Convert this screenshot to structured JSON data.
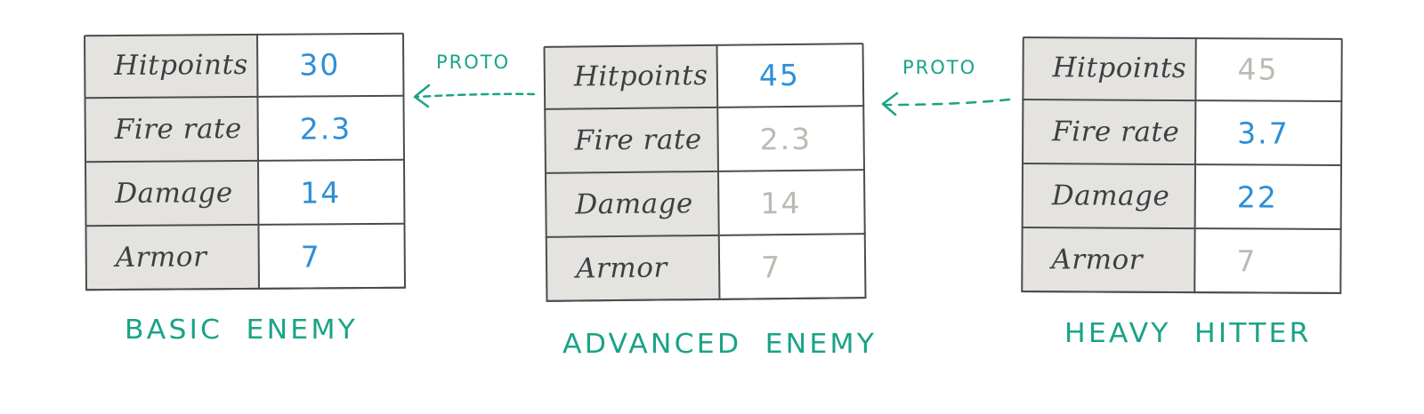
{
  "tables": [
    {
      "caption": "BASIC  ENEMY",
      "rows": [
        {
          "stat": "Hitpoints",
          "value": "30",
          "inherited": false
        },
        {
          "stat": "Fire rate",
          "value": "2.3",
          "inherited": false
        },
        {
          "stat": "Damage",
          "value": "14",
          "inherited": false
        },
        {
          "stat": "Armor",
          "value": "7",
          "inherited": false
        }
      ]
    },
    {
      "caption": "ADVANCED  ENEMY",
      "rows": [
        {
          "stat": "Hitpoints",
          "value": "45",
          "inherited": false
        },
        {
          "stat": "Fire rate",
          "value": "2.3",
          "inherited": true
        },
        {
          "stat": "Damage",
          "value": "14",
          "inherited": true
        },
        {
          "stat": "Armor",
          "value": "7",
          "inherited": true
        }
      ]
    },
    {
      "caption": "HEAVY  HITTER",
      "rows": [
        {
          "stat": "Hitpoints",
          "value": "45",
          "inherited": true
        },
        {
          "stat": "Fire rate",
          "value": "3.7",
          "inherited": false
        },
        {
          "stat": "Damage",
          "value": "22",
          "inherited": false
        },
        {
          "stat": "Armor",
          "value": "7",
          "inherited": true
        }
      ]
    }
  ],
  "arrows": [
    {
      "label": "PROTO",
      "from": "ADVANCED  ENEMY",
      "to": "BASIC  ENEMY"
    },
    {
      "label": "PROTO",
      "from": "HEAVY  HITTER",
      "to": "ADVANCED  ENEMY"
    }
  ],
  "colors": {
    "own_value": "#2e8fd6",
    "inherited_value": "#bdbab3",
    "annotation": "#1aa387",
    "stat_column_fill": "#e4e3df",
    "grid_lines": "#4a4d50"
  }
}
